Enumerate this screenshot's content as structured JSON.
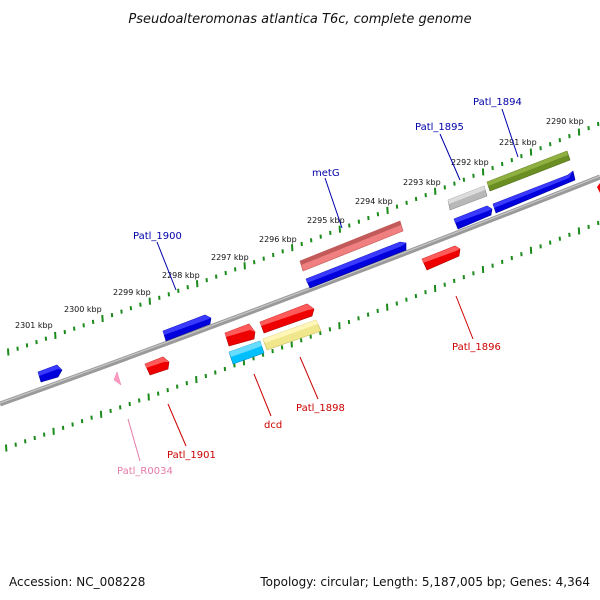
{
  "title": "Pseudoalteromonas atlantica T6c, complete genome",
  "footer": {
    "accession": "Accession: NC_008228",
    "summary": "Topology: circular; Length: 5,187,005 bp; Genes: 4,364"
  },
  "colors": {
    "backbone": "#808080",
    "tick": "#1a8a1a",
    "forward_label": "#0000aa",
    "reverse_label": "#cc0000",
    "rna_label": "#e77aa8"
  },
  "scale_ticks": [
    "2301 kbp",
    "2300 kbp",
    "2299 kbp",
    "2298 kbp",
    "2297 kbp",
    "2296 kbp",
    "2295 kbp",
    "2294 kbp",
    "2293 kbp",
    "2292 kbp",
    "2291 kbp",
    "2290 kbp"
  ],
  "gene_labels": {
    "patl_1894": "Patl_1894",
    "patl_1895": "Patl_1895",
    "metg": "metG",
    "patl_1900": "Patl_1900",
    "patl_1896": "Patl_1896",
    "patl_1898": "Patl_1898",
    "dcd": "dcd",
    "patl_1901": "Patl_1901",
    "patl_r0034": "Patl_R0034"
  },
  "features": [
    {
      "id": "patl_1894",
      "strand": "+",
      "color": "#6b8e23"
    },
    {
      "id": "patl_1895",
      "strand": "+",
      "color": "#b0b0b0"
    },
    {
      "id": "metg",
      "strand": "+",
      "color": "#f08080"
    },
    {
      "id": "patl_1900",
      "strand": "+",
      "color": "#0000dd"
    },
    {
      "id": "patl_1896",
      "strand": "-",
      "color": "#ee0000"
    },
    {
      "id": "patl_1898",
      "strand": "-",
      "color": "#f0e68c"
    },
    {
      "id": "dcd",
      "strand": "-",
      "color": "#00bfff"
    },
    {
      "id": "patl_1901",
      "strand": "-",
      "color": "#ee0000"
    },
    {
      "id": "patl_r0034",
      "strand": "-",
      "color": "#ff9cc4"
    }
  ]
}
